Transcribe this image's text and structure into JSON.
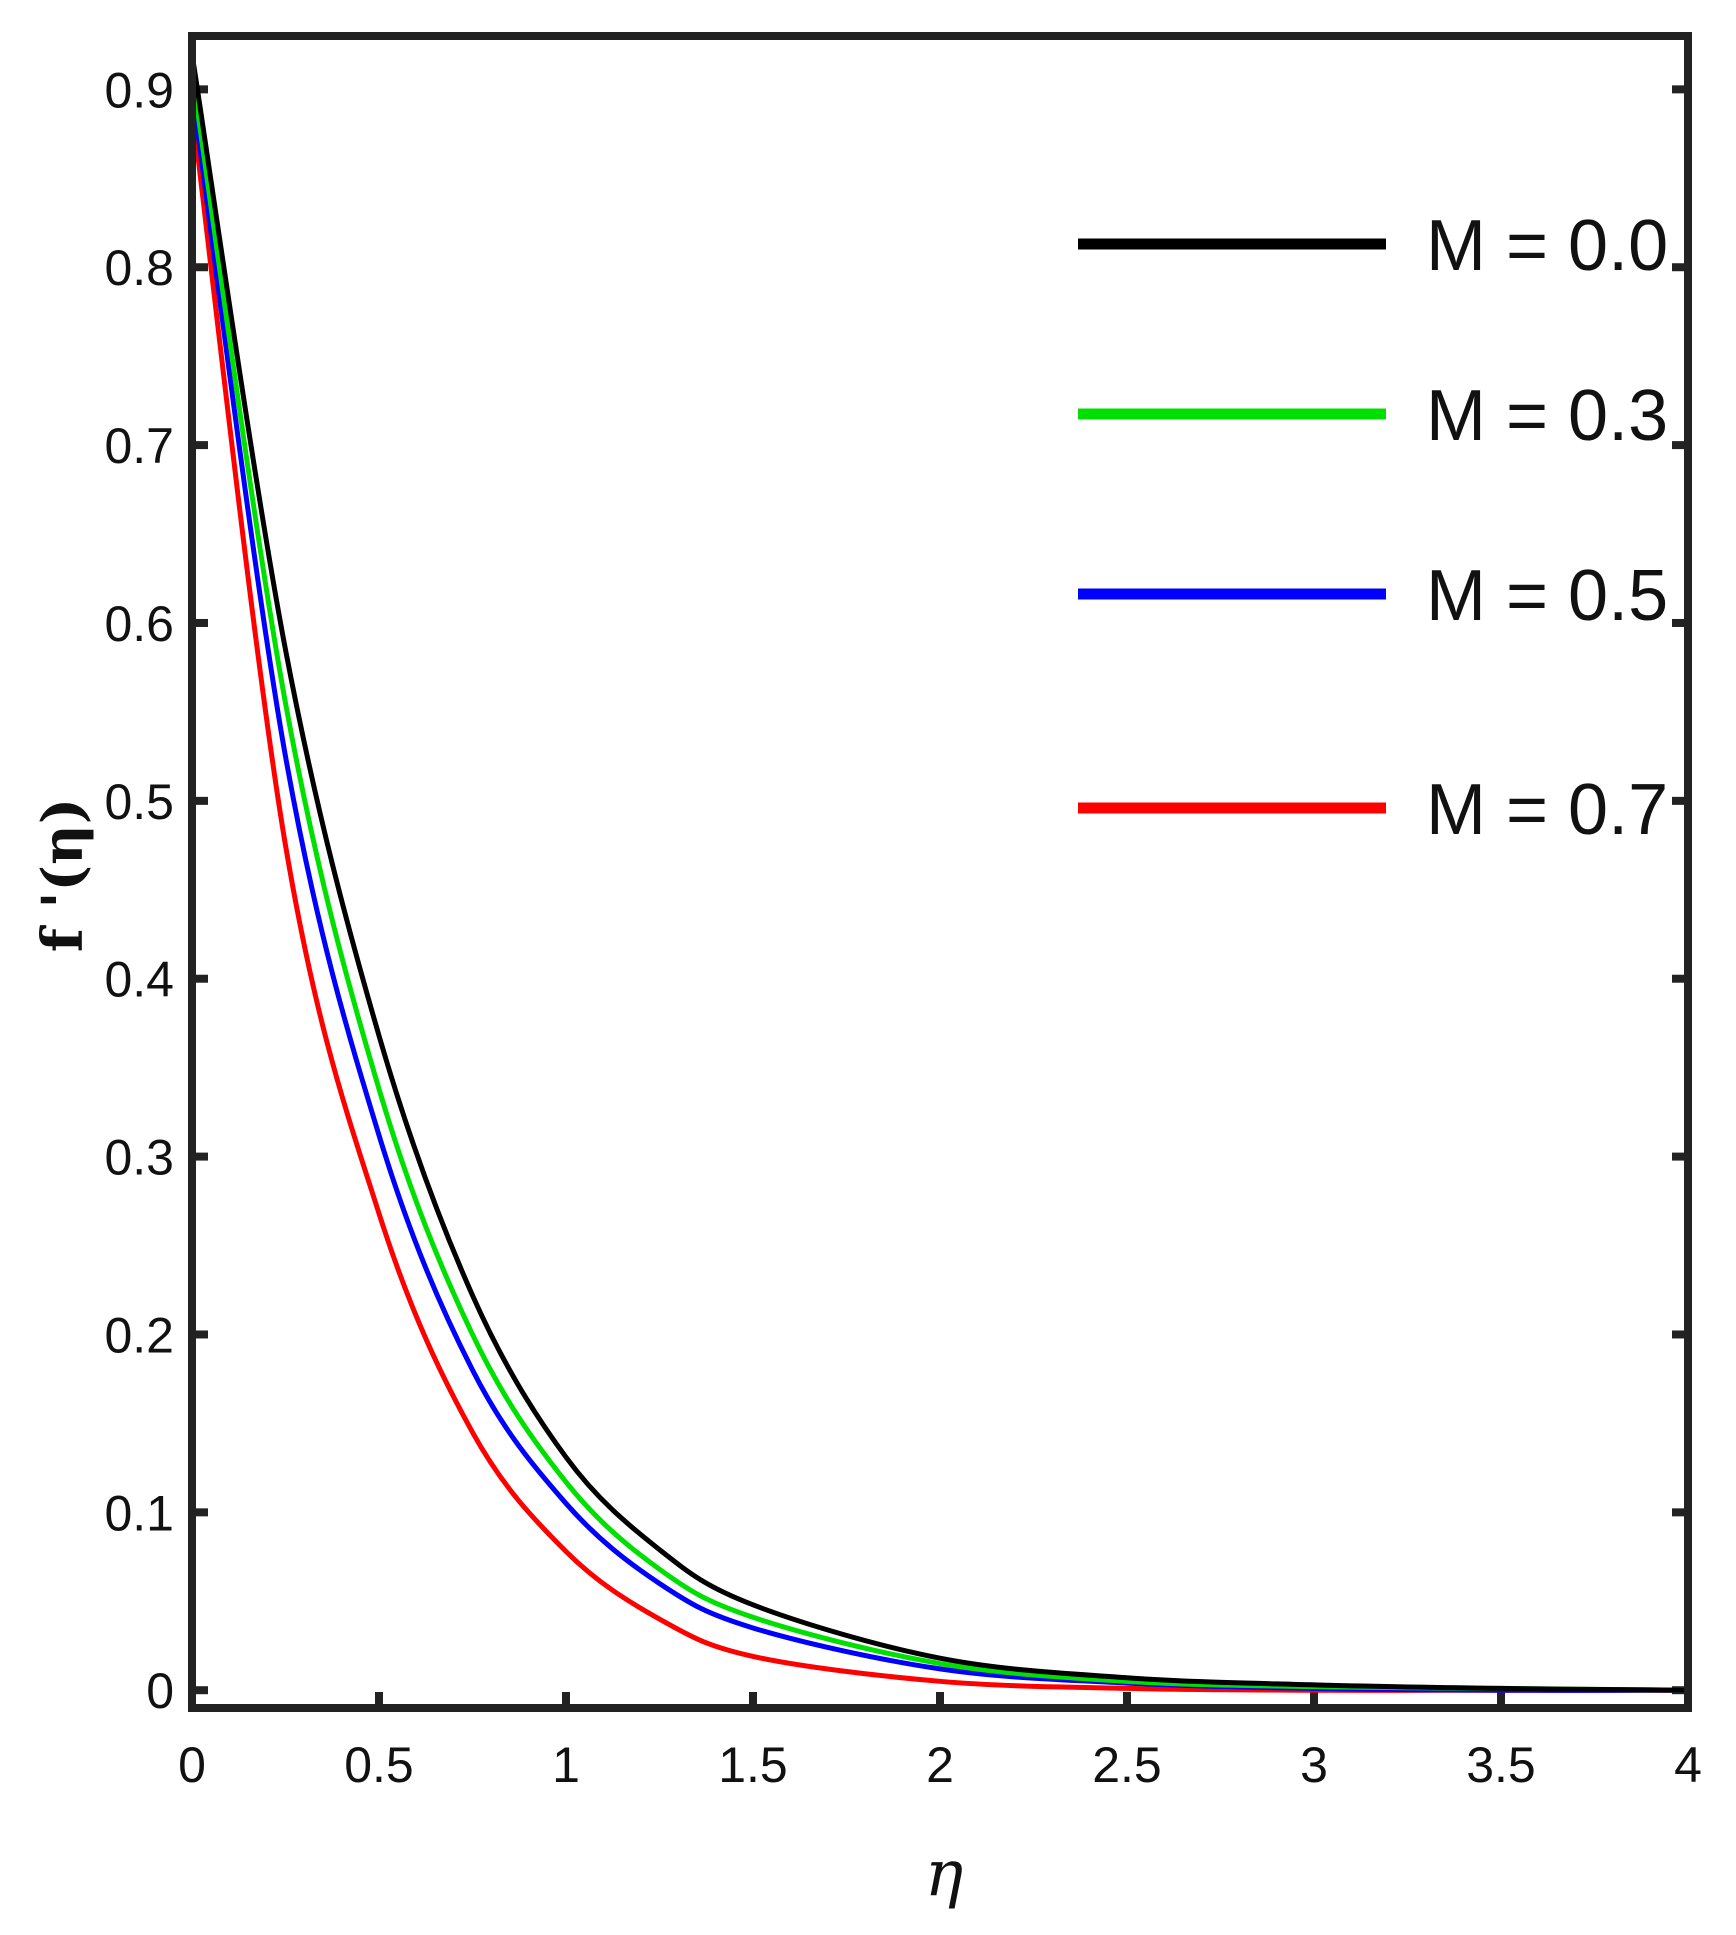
{
  "chart_data": {
    "type": "line",
    "xlabel": "η",
    "ylabel": "f '(η)",
    "xlim": [
      0,
      4
    ],
    "ylim": [
      -0.01,
      0.93
    ],
    "xticks": [
      0,
      0.5,
      1,
      1.5,
      2,
      2.5,
      3,
      3.5,
      4
    ],
    "xtick_labels": [
      "0",
      "0.5",
      "1",
      "1.5",
      "2",
      "2.5",
      "3",
      "3.5",
      "4"
    ],
    "yticks": [
      0,
      0.1,
      0.2,
      0.3,
      0.4,
      0.5,
      0.6,
      0.7,
      0.8,
      0.9
    ],
    "ytick_labels": [
      "0",
      "0.1",
      "0.2",
      "0.3",
      "0.4",
      "0.5",
      "0.6",
      "0.7",
      "0.8",
      "0.9"
    ],
    "grid": false,
    "legend_position": "top-right",
    "x": [
      0,
      0.25,
      0.5,
      0.75,
      1.0,
      1.25,
      1.5,
      2.0,
      2.5,
      3.0,
      3.5,
      4.0
    ],
    "series": [
      {
        "name": "M = 0.0",
        "color": "#000000",
        "values": [
          0.92,
          0.585,
          0.368,
          0.222,
          0.131,
          0.079,
          0.048,
          0.018,
          0.007,
          0.003,
          0.001,
          0.0
        ]
      },
      {
        "name": "M = 0.3",
        "color": "#00e000",
        "values": [
          0.91,
          0.555,
          0.338,
          0.2,
          0.117,
          0.068,
          0.041,
          0.015,
          0.005,
          0.002,
          0.001,
          0.0
        ]
      },
      {
        "name": "M = 0.5",
        "color": "#0000ff",
        "values": [
          0.9,
          0.525,
          0.312,
          0.18,
          0.105,
          0.06,
          0.035,
          0.012,
          0.004,
          0.001,
          0.0,
          0.0
        ]
      },
      {
        "name": "M = 0.7",
        "color": "#ff0000",
        "values": [
          0.89,
          0.475,
          0.268,
          0.145,
          0.078,
          0.04,
          0.019,
          0.005,
          0.001,
          0.0,
          0.0,
          0.0
        ]
      }
    ]
  }
}
